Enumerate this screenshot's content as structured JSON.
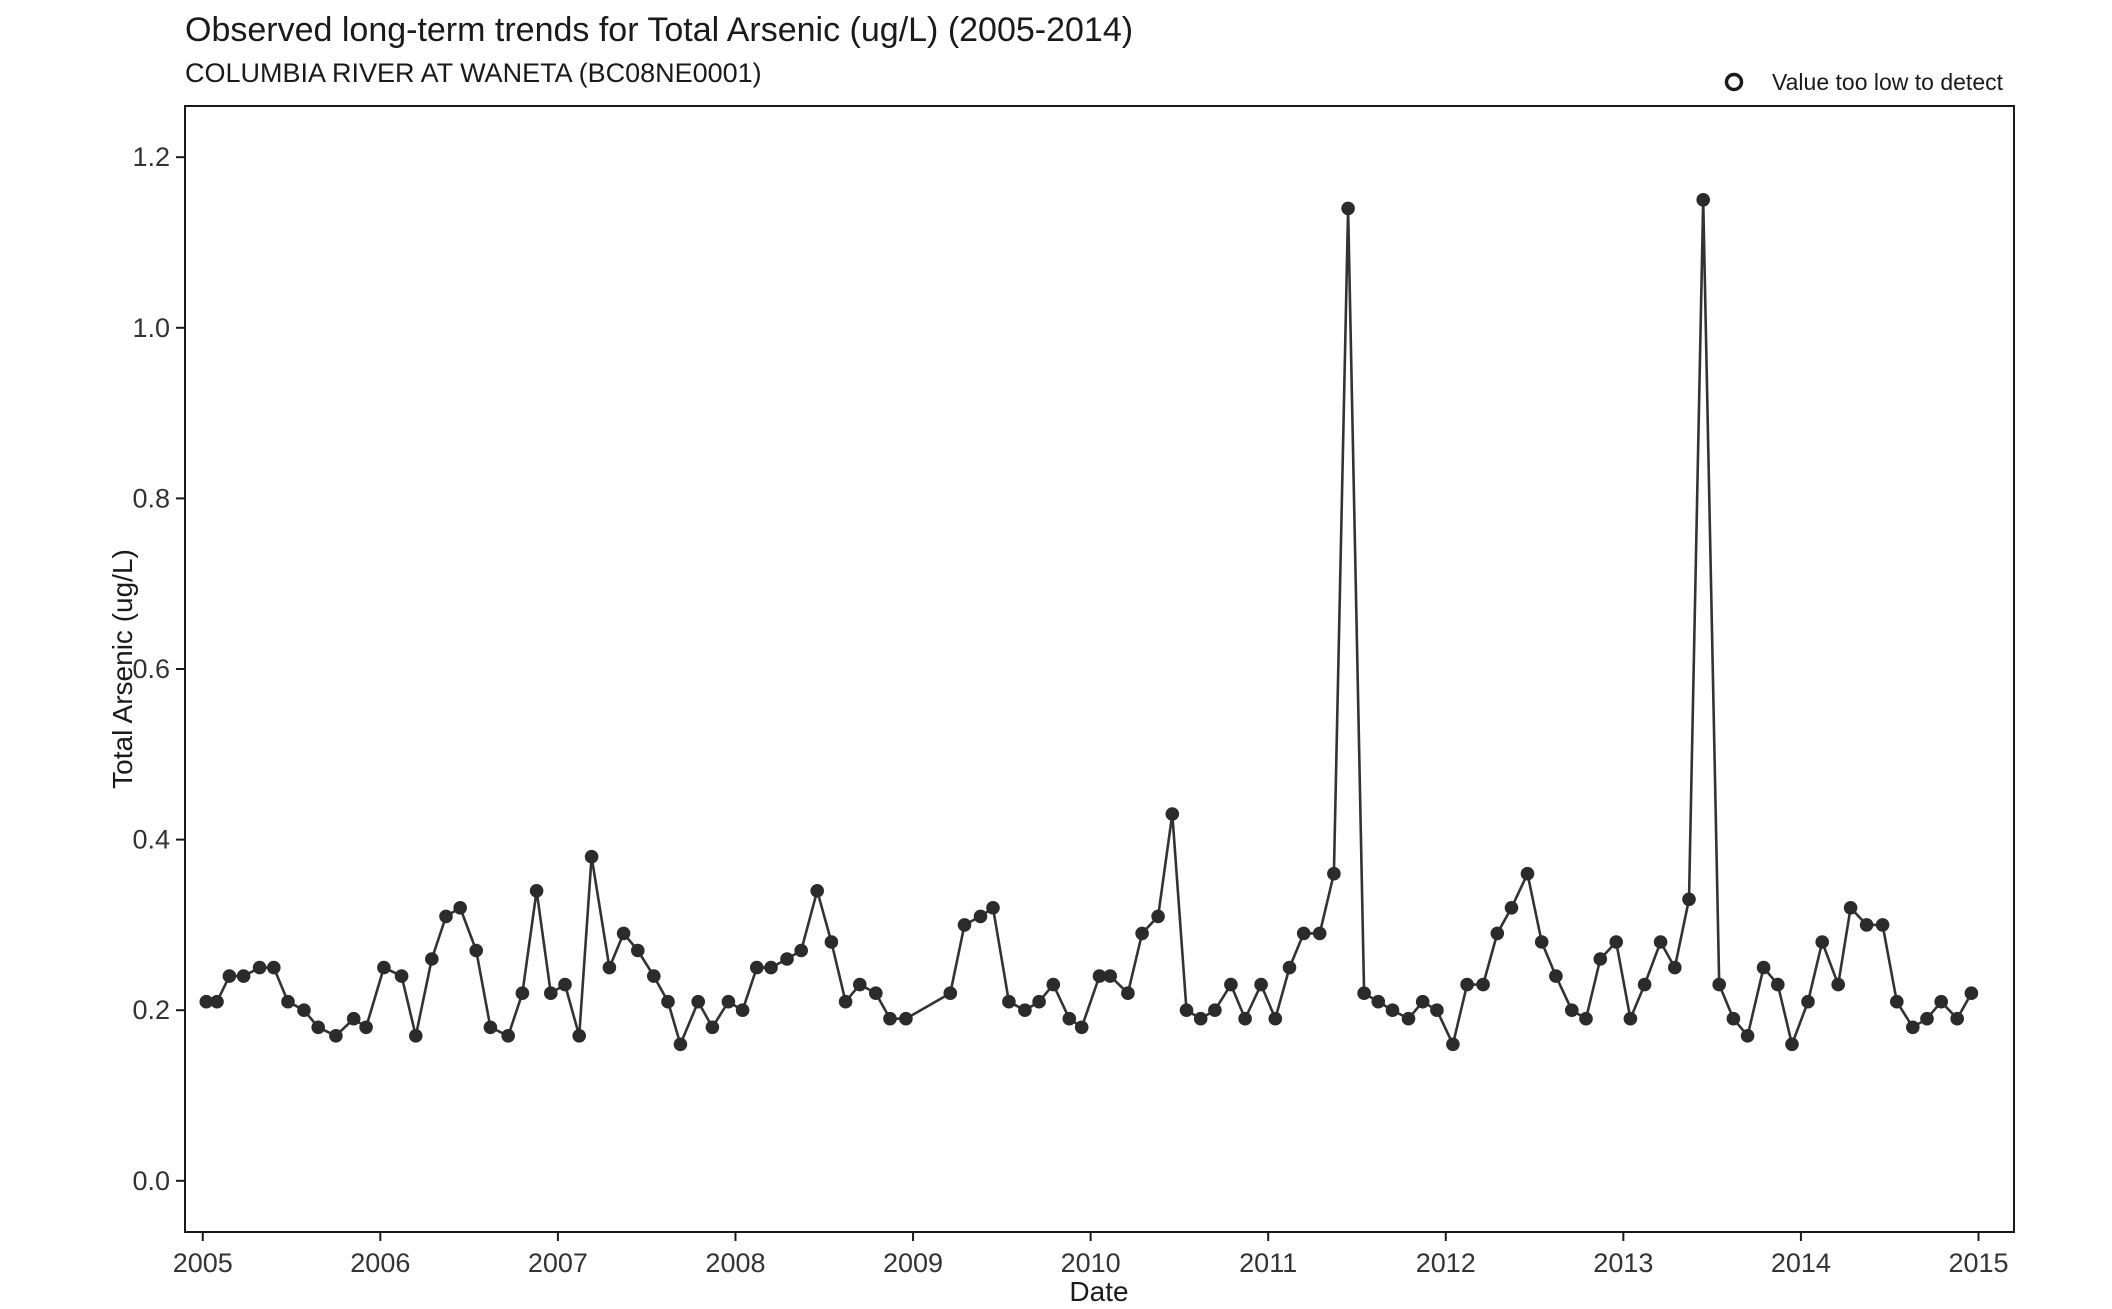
{
  "chart_data": {
    "type": "line",
    "title": "Observed long-term trends for Total Arsenic (ug/L) (2005-2014)",
    "subtitle": "COLUMBIA RIVER AT WANETA (BC08NE0001)",
    "xlabel": "Date",
    "ylabel": "Total Arsenic (ug/L)",
    "xlim": [
      2004.9,
      2015.2
    ],
    "ylim": [
      -0.06,
      1.26
    ],
    "x_ticks": [
      "2005",
      "2006",
      "2007",
      "2008",
      "2009",
      "2010",
      "2011",
      "2012",
      "2013",
      "2014",
      "2015"
    ],
    "y_ticks": [
      "0.0",
      "0.2",
      "0.4",
      "0.6",
      "0.8",
      "1.0",
      "1.2"
    ],
    "grid": false,
    "legend": {
      "position": "top-right",
      "entries": [
        {
          "label": "Value too low to detect",
          "marker": "open-circle"
        }
      ]
    },
    "colors": {
      "line": "#333333",
      "points": "#2b2b2b",
      "axis": "#1a1a1a"
    },
    "series": [
      {
        "points": [
          [
            2005.02,
            0.21
          ],
          [
            2005.08,
            0.21
          ],
          [
            2005.15,
            0.24
          ],
          [
            2005.23,
            0.24
          ],
          [
            2005.32,
            0.25
          ],
          [
            2005.4,
            0.25
          ],
          [
            2005.48,
            0.21
          ],
          [
            2005.57,
            0.2
          ],
          [
            2005.65,
            0.18
          ],
          [
            2005.75,
            0.17
          ],
          [
            2005.85,
            0.19
          ],
          [
            2005.92,
            0.18
          ],
          [
            2006.02,
            0.25
          ],
          [
            2006.12,
            0.24
          ],
          [
            2006.2,
            0.17
          ],
          [
            2006.29,
            0.26
          ],
          [
            2006.37,
            0.31
          ],
          [
            2006.45,
            0.32
          ],
          [
            2006.54,
            0.27
          ],
          [
            2006.62,
            0.18
          ],
          [
            2006.72,
            0.17
          ],
          [
            2006.8,
            0.22
          ],
          [
            2006.88,
            0.34
          ],
          [
            2006.96,
            0.22
          ],
          [
            2007.04,
            0.23
          ],
          [
            2007.12,
            0.17
          ],
          [
            2007.19,
            0.38
          ],
          [
            2007.29,
            0.25
          ],
          [
            2007.37,
            0.29
          ],
          [
            2007.45,
            0.27
          ],
          [
            2007.54,
            0.24
          ],
          [
            2007.62,
            0.21
          ],
          [
            2007.69,
            0.16
          ],
          [
            2007.79,
            0.21
          ],
          [
            2007.87,
            0.18
          ],
          [
            2007.96,
            0.21
          ],
          [
            2008.04,
            0.2
          ],
          [
            2008.12,
            0.25
          ],
          [
            2008.2,
            0.25
          ],
          [
            2008.29,
            0.26
          ],
          [
            2008.37,
            0.27
          ],
          [
            2008.46,
            0.34
          ],
          [
            2008.54,
            0.28
          ],
          [
            2008.62,
            0.21
          ],
          [
            2008.7,
            0.23
          ],
          [
            2008.79,
            0.22
          ],
          [
            2008.87,
            0.19
          ],
          [
            2008.96,
            0.19
          ],
          [
            2009.21,
            0.22
          ],
          [
            2009.29,
            0.3
          ],
          [
            2009.38,
            0.31
          ],
          [
            2009.45,
            0.32
          ],
          [
            2009.54,
            0.21
          ],
          [
            2009.63,
            0.2
          ],
          [
            2009.71,
            0.21
          ],
          [
            2009.79,
            0.23
          ],
          [
            2009.88,
            0.19
          ],
          [
            2009.95,
            0.18
          ],
          [
            2010.05,
            0.24
          ],
          [
            2010.11,
            0.24
          ],
          [
            2010.21,
            0.22
          ],
          [
            2010.29,
            0.29
          ],
          [
            2010.38,
            0.31
          ],
          [
            2010.46,
            0.43
          ],
          [
            2010.54,
            0.2
          ],
          [
            2010.62,
            0.19
          ],
          [
            2010.7,
            0.2
          ],
          [
            2010.79,
            0.23
          ],
          [
            2010.87,
            0.19
          ],
          [
            2010.96,
            0.23
          ],
          [
            2011.04,
            0.19
          ],
          [
            2011.12,
            0.25
          ],
          [
            2011.2,
            0.29
          ],
          [
            2011.29,
            0.29
          ],
          [
            2011.37,
            0.36
          ],
          [
            2011.45,
            1.14
          ],
          [
            2011.54,
            0.22
          ],
          [
            2011.62,
            0.21
          ],
          [
            2011.7,
            0.2
          ],
          [
            2011.79,
            0.19
          ],
          [
            2011.87,
            0.21
          ],
          [
            2011.95,
            0.2
          ],
          [
            2012.04,
            0.16
          ],
          [
            2012.12,
            0.23
          ],
          [
            2012.21,
            0.23
          ],
          [
            2012.29,
            0.29
          ],
          [
            2012.37,
            0.32
          ],
          [
            2012.46,
            0.36
          ],
          [
            2012.54,
            0.28
          ],
          [
            2012.62,
            0.24
          ],
          [
            2012.71,
            0.2
          ],
          [
            2012.79,
            0.19
          ],
          [
            2012.87,
            0.26
          ],
          [
            2012.96,
            0.28
          ],
          [
            2013.04,
            0.19
          ],
          [
            2013.12,
            0.23
          ],
          [
            2013.21,
            0.28
          ],
          [
            2013.29,
            0.25
          ],
          [
            2013.37,
            0.33
          ],
          [
            2013.45,
            1.15
          ],
          [
            2013.54,
            0.23
          ],
          [
            2013.62,
            0.19
          ],
          [
            2013.7,
            0.17
          ],
          [
            2013.79,
            0.25
          ],
          [
            2013.87,
            0.23
          ],
          [
            2013.95,
            0.16
          ],
          [
            2014.04,
            0.21
          ],
          [
            2014.12,
            0.28
          ],
          [
            2014.21,
            0.23
          ],
          [
            2014.28,
            0.32
          ],
          [
            2014.37,
            0.3
          ],
          [
            2014.46,
            0.3
          ],
          [
            2014.54,
            0.21
          ],
          [
            2014.63,
            0.18
          ],
          [
            2014.71,
            0.19
          ],
          [
            2014.79,
            0.21
          ],
          [
            2014.88,
            0.19
          ],
          [
            2014.96,
            0.22
          ]
        ]
      }
    ]
  }
}
